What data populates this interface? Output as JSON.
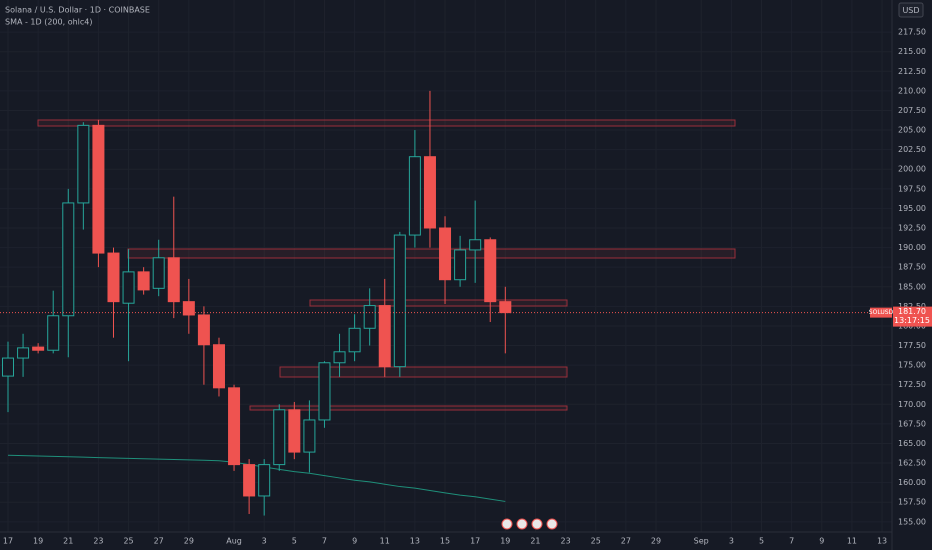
{
  "chart_data": {
    "type": "candlestick",
    "title": "Solana / U.S. Dollar · 1D · COINBASE",
    "indicator": "SMA - 1D (200, ohlc4)",
    "currency": "USD",
    "symbol": "SOLUSD",
    "last_price_label": "181.70",
    "countdown": "13:17:15",
    "up_color": "#26a69a",
    "down_color": "#ef5350",
    "sma_color": "#1f8f7a",
    "grid": true,
    "categories": [
      "17",
      null,
      "19",
      null,
      "21",
      null,
      "23",
      null,
      "25",
      null,
      "27",
      null,
      "29",
      null,
      null,
      "Aug",
      null,
      "3",
      null,
      "5",
      null,
      "7",
      null,
      "9",
      null,
      "11",
      null,
      "13",
      null,
      "15",
      null,
      "17",
      null,
      "19",
      null,
      "21",
      null,
      "23",
      null,
      "25",
      null,
      "27",
      null,
      "29",
      null,
      null,
      "Sep",
      null,
      "3",
      null,
      "5",
      null,
      "7",
      null,
      "9",
      null,
      "11",
      null,
      "13"
    ],
    "open": [
      173.6,
      175.9,
      177.3,
      176.9,
      181.3,
      195.7,
      205.6,
      189.3,
      182.9,
      186.9,
      184.8,
      188.7,
      183.1,
      181.4,
      177.6,
      172.1,
      162.3,
      158.3,
      162.3,
      169.3,
      163.9,
      168.0,
      175.3,
      176.7,
      179.7,
      182.6,
      174.8,
      191.6,
      201.6,
      192.5,
      185.9,
      189.7,
      191.0,
      183.1,
      null,
      null,
      null,
      null,
      null,
      null,
      null,
      null,
      null,
      null,
      null,
      null,
      null,
      null,
      null,
      null,
      null,
      null,
      null,
      null,
      null,
      null,
      null,
      null,
      null
    ],
    "high": [
      178.0,
      179.0,
      177.8,
      184.5,
      197.5,
      206.0,
      206.3,
      190.0,
      189.8,
      187.5,
      191.0,
      196.5,
      186.0,
      182.5,
      178.5,
      172.5,
      163.0,
      163.0,
      170.0,
      170.3,
      170.5,
      175.5,
      179.0,
      181.5,
      184.8,
      186.0,
      192.0,
      205.0,
      210.0,
      194.0,
      191.5,
      196.0,
      191.3,
      185.0,
      null,
      null,
      null,
      null,
      null,
      null,
      null,
      null,
      null,
      null,
      null,
      null,
      null,
      null,
      null,
      null,
      null,
      null,
      null,
      null,
      null,
      null,
      null,
      null,
      null
    ],
    "low": [
      169.0,
      173.5,
      176.5,
      176.5,
      176.0,
      192.3,
      187.5,
      178.5,
      175.5,
      184.0,
      183.8,
      181.0,
      179.0,
      172.5,
      171.0,
      161.5,
      156.0,
      155.8,
      161.5,
      163.0,
      161.3,
      167.0,
      173.5,
      175.5,
      177.5,
      173.5,
      173.5,
      190.0,
      190.0,
      182.8,
      185.0,
      185.5,
      180.5,
      176.5,
      null,
      null,
      null,
      null,
      null,
      null,
      null,
      null,
      null,
      null,
      null,
      null,
      null,
      null,
      null,
      null,
      null,
      null,
      null,
      null,
      null,
      null,
      null,
      null,
      null
    ],
    "close": [
      175.9,
      177.2,
      176.9,
      181.3,
      195.7,
      205.6,
      189.3,
      183.1,
      186.9,
      184.6,
      188.7,
      183.1,
      181.4,
      177.6,
      172.1,
      162.3,
      158.3,
      162.3,
      169.3,
      163.9,
      168.0,
      175.3,
      176.7,
      179.7,
      182.6,
      174.8,
      191.6,
      201.6,
      192.5,
      185.9,
      189.7,
      191.0,
      183.1,
      181.7,
      null,
      null,
      null,
      null,
      null,
      null,
      null,
      null,
      null,
      null,
      null,
      null,
      null,
      null,
      null,
      null,
      null,
      null,
      null,
      null,
      null,
      null,
      null,
      null,
      null
    ],
    "sma": [
      163.5,
      163.45,
      163.4,
      163.35,
      163.3,
      163.25,
      163.2,
      163.15,
      163.1,
      163.05,
      163.0,
      162.95,
      162.9,
      162.85,
      162.8,
      162.6,
      162.3,
      162.0,
      161.7,
      161.4,
      161.2,
      160.9,
      160.6,
      160.3,
      160.1,
      159.8,
      159.5,
      159.3,
      159.0,
      158.7,
      158.4,
      158.2,
      157.9,
      157.6,
      null,
      null,
      null,
      null,
      null,
      null,
      null,
      null,
      null,
      null,
      null,
      null,
      null,
      null,
      null,
      null,
      null,
      null,
      null,
      null,
      null,
      null,
      null,
      null,
      null
    ],
    "ylim": [
      153.7,
      221.6
    ],
    "yticks": [
      {
        "value": 155,
        "label": "155.00"
      },
      {
        "value": 157.5,
        "label": "157.50"
      },
      {
        "value": 160,
        "label": "160.00"
      },
      {
        "value": 162.5,
        "label": "162.50"
      },
      {
        "value": 165,
        "label": "165.00"
      },
      {
        "value": 167.5,
        "label": "167.50"
      },
      {
        "value": 170,
        "label": "170.00"
      },
      {
        "value": 172.5,
        "label": "172.50"
      },
      {
        "value": 175,
        "label": "175.00"
      },
      {
        "value": 177.5,
        "label": "177.50"
      },
      {
        "value": 180,
        "label": "180.00"
      },
      {
        "value": 182.5,
        "label": "182.50"
      },
      {
        "value": 185,
        "label": "185.00"
      },
      {
        "value": 187.5,
        "label": "187.50"
      },
      {
        "value": 190,
        "label": "190.00"
      },
      {
        "value": 192.5,
        "label": "192.50"
      },
      {
        "value": 195,
        "label": "195.00"
      },
      {
        "value": 197.5,
        "label": "197.50"
      },
      {
        "value": 200,
        "label": "200.00"
      },
      {
        "value": 202.5,
        "label": "202.50"
      },
      {
        "value": 205,
        "label": "205.00"
      },
      {
        "value": 207.5,
        "label": "207.50"
      },
      {
        "value": 210,
        "label": "210.00"
      },
      {
        "value": 212.5,
        "label": "212.50"
      },
      {
        "value": 215,
        "label": "215.00"
      },
      {
        "value": 217.5,
        "label": "217.50"
      }
    ]
  }
}
